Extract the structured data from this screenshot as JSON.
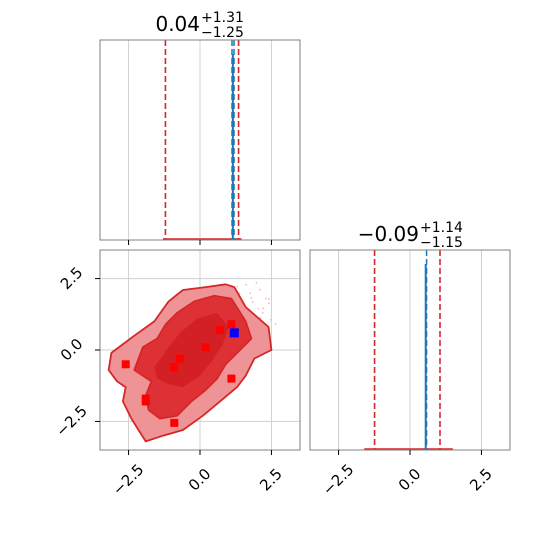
{
  "chart_data": {
    "type": "corner",
    "colors": {
      "posterior": "#d62728",
      "injection": "#1f77b4",
      "marker_red": "#ff0000",
      "marker_blue": "#0000ff",
      "grid": "#d0d0d0",
      "frame": "#808080"
    },
    "panels": [
      {
        "id": "marginal-1",
        "kind": "histogram",
        "title": {
          "value": "0.04",
          "upper": "+1.31",
          "lower": "−1.25"
        },
        "xlim": [
          -3.5,
          3.5
        ],
        "xticks": [
          -2.5,
          0.0,
          2.5
        ],
        "show_tick_labels": false,
        "median": 0.04,
        "credible_interval": [
          -1.21,
          1.35
        ],
        "injection_lines": [
          1.12,
          1.19
        ],
        "spike_x": 1.15,
        "posterior_base": [
          -1.3,
          1.45
        ]
      },
      {
        "id": "marginal-2",
        "kind": "histogram",
        "title": {
          "value": "−0.09",
          "upper": "+1.14",
          "lower": "−1.15"
        },
        "xlim": [
          -3.5,
          3.5
        ],
        "xticks": [
          -2.5,
          0.0,
          2.5
        ],
        "xtick_labels": [
          "−2.5",
          "0.0",
          "2.5"
        ],
        "median": -0.09,
        "credible_interval": [
          -1.24,
          1.05
        ],
        "injection_lines": [
          0.58
        ],
        "spike_x": 0.55,
        "posterior_base": [
          -1.6,
          1.5
        ]
      },
      {
        "id": "joint",
        "kind": "contour",
        "xlim": [
          -3.5,
          3.5
        ],
        "ylim": [
          -3.5,
          3.5
        ],
        "xticks": [
          -2.5,
          0.0,
          2.5
        ],
        "yticks": [
          -2.5,
          0.0,
          2.5
        ],
        "xtick_labels": [
          "−2.5",
          "0.0",
          "2.5"
        ],
        "ytick_labels": [
          "−2.5",
          "0.0",
          "2.5"
        ],
        "outer_contour": [
          [
            -3.2,
            -0.7
          ],
          [
            -3.1,
            -0.1
          ],
          [
            -2.3,
            0.5
          ],
          [
            -1.6,
            1.0
          ],
          [
            -1.1,
            1.7
          ],
          [
            -0.6,
            2.1
          ],
          [
            0.2,
            2.2
          ],
          [
            0.9,
            2.3
          ],
          [
            1.2,
            2.2
          ],
          [
            1.6,
            1.5
          ],
          [
            2.4,
            0.8
          ],
          [
            2.5,
            0.0
          ],
          [
            1.9,
            -0.3
          ],
          [
            1.6,
            -0.9
          ],
          [
            1.3,
            -1.3
          ],
          [
            0.7,
            -1.8
          ],
          [
            0.1,
            -2.3
          ],
          [
            -0.6,
            -2.8
          ],
          [
            -1.3,
            -3.0
          ],
          [
            -1.9,
            -3.2
          ],
          [
            -2.4,
            -2.4
          ],
          [
            -2.7,
            -1.8
          ],
          [
            -2.6,
            -1.3
          ],
          [
            -2.9,
            -1.1
          ]
        ],
        "inner_contour": [
          [
            -2.3,
            -0.7
          ],
          [
            -2.0,
            0.1
          ],
          [
            -1.5,
            0.4
          ],
          [
            -1.2,
            0.9
          ],
          [
            -0.8,
            1.3
          ],
          [
            -0.2,
            1.7
          ],
          [
            0.5,
            1.9
          ],
          [
            1.1,
            1.8
          ],
          [
            1.6,
            1.0
          ],
          [
            1.8,
            0.4
          ],
          [
            1.4,
            0.0
          ],
          [
            0.9,
            -0.5
          ],
          [
            0.6,
            -1.0
          ],
          [
            0.2,
            -1.4
          ],
          [
            -0.3,
            -1.8
          ],
          [
            -0.8,
            -2.3
          ],
          [
            -1.4,
            -2.4
          ],
          [
            -1.8,
            -2.1
          ],
          [
            -1.9,
            -1.6
          ],
          [
            -1.7,
            -1.1
          ]
        ],
        "core_contour": [
          [
            -1.6,
            -0.6
          ],
          [
            -1.1,
            0.1
          ],
          [
            -0.7,
            0.6
          ],
          [
            -0.1,
            1.1
          ],
          [
            0.6,
            1.3
          ],
          [
            1.0,
            0.8
          ],
          [
            0.8,
            0.2
          ],
          [
            0.4,
            -0.4
          ],
          [
            0.0,
            -0.9
          ],
          [
            -0.6,
            -1.3
          ],
          [
            -1.1,
            -1.2
          ],
          [
            -1.5,
            -1.0
          ]
        ],
        "red_markers": [
          [
            -2.6,
            -0.5
          ],
          [
            -1.9,
            -1.7
          ],
          [
            -1.9,
            -1.8
          ],
          [
            -0.7,
            -0.3
          ],
          [
            -0.9,
            -0.6
          ],
          [
            0.2,
            0.1
          ],
          [
            0.7,
            0.7
          ],
          [
            1.1,
            0.9
          ],
          [
            1.1,
            -1.0
          ],
          [
            -0.9,
            -2.55
          ]
        ],
        "blue_markers": [
          [
            1.2,
            0.6
          ]
        ]
      }
    ]
  }
}
